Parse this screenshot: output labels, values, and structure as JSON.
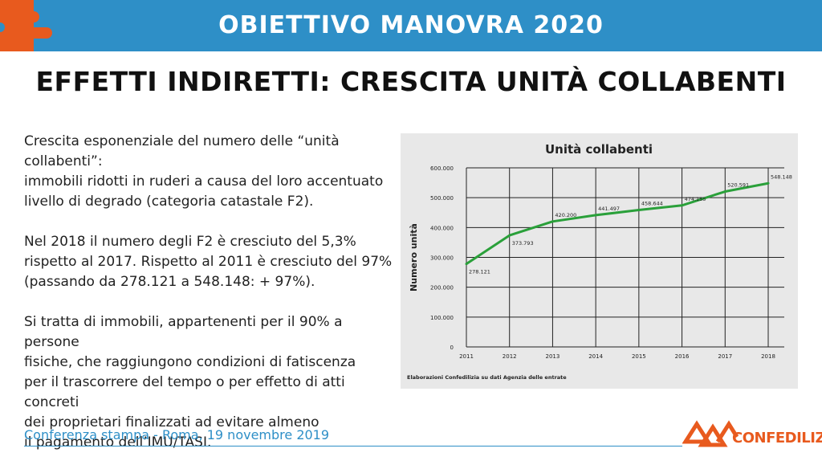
{
  "header": {
    "title": "OBIETTIVO MANOVRA 2020",
    "accent_color": "#2e8fc7"
  },
  "main_title": "EFFETTI INDIRETTI: CRESCITA UNITÀ COLLABENTI",
  "body": {
    "p1": "Crescita esponenziale del numero delle “unità collabenti”:\nimmobili ridotti in ruderi a causa del loro accentuato\nlivello di degrado (categoria catastale F2).",
    "p2": "Nel 2018 il numero degli F2 è cresciuto del 5,3%\nrispetto al 2017. Rispetto al 2011 è cresciuto del 97%\n(passando da 278.121 a 548.148: + 97%).",
    "p3": "Si tratta di immobili, appartenenti per il 90% a persone\nfisiche, che raggiungono condizioni di fatiscenza\nper il trascorrere del tempo o per effetto di atti concreti\ndei proprietari finalizzati ad evitare almeno\nil pagamento dell’IMU/TASI."
  },
  "chart_data": {
    "type": "line",
    "title": "Unità collabenti",
    "ylabel": "Numero unità",
    "xlabel": "",
    "x": [
      "2011",
      "2012",
      "2013",
      "2014",
      "2015",
      "2016",
      "2017",
      "2018"
    ],
    "values": [
      278121,
      373793,
      420200,
      441497,
      458644,
      474155,
      520591,
      548148
    ],
    "data_labels": [
      "278.121",
      "373.793",
      "420.200",
      "441.497",
      "458.644",
      "474.155",
      "520.591",
      "548.148"
    ],
    "ylim": [
      0,
      600000
    ],
    "yticks": [
      0,
      100000,
      200000,
      300000,
      400000,
      500000,
      600000
    ],
    "ytick_labels": [
      "0",
      "100.000",
      "200.000",
      "300.000",
      "400.000",
      "500.000",
      "600.000"
    ],
    "grid": true,
    "line_color": "#2aa03a",
    "source": "Elaborazioni Confedilizia su dati Agenzia delle entrate"
  },
  "footer": {
    "text": "Conferenza stampa - Roma, 19 novembre 2019"
  },
  "logo": {
    "text": "CONFEDILIZIA",
    "color": "#e85a1e",
    "icon": "confedilizia-logo-icon"
  },
  "puzzle_icon": {
    "name": "puzzle-piece-icon",
    "color": "#e85a1e"
  }
}
